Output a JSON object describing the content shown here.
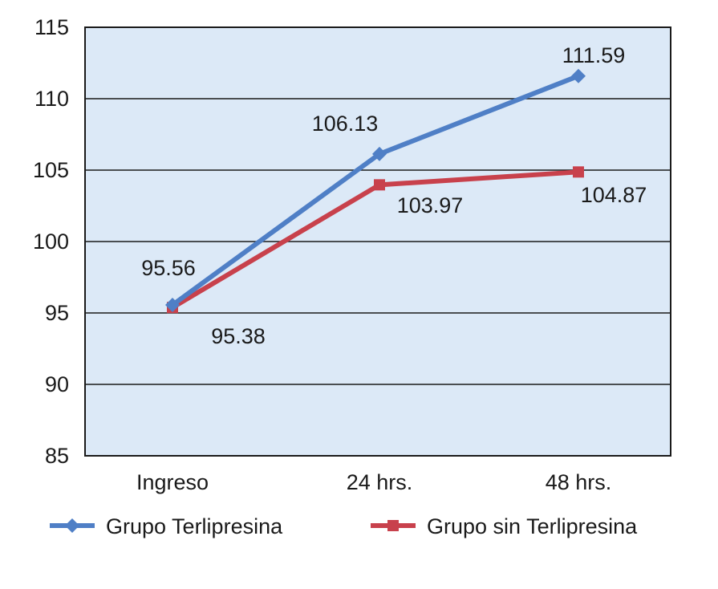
{
  "chart_data": {
    "type": "line",
    "title": "",
    "xlabel": "",
    "ylabel": "",
    "categories": [
      "Ingreso",
      "24 hrs.",
      "48 hrs."
    ],
    "ylim": [
      85,
      115
    ],
    "yticks": [
      "85",
      "90",
      "95",
      "100",
      "105",
      "110",
      "115"
    ],
    "grid": true,
    "legend_position": "bottom",
    "plot_background": "#dce9f7",
    "series": [
      {
        "name": "Grupo Terlipresina",
        "color": "#4f7fc6",
        "marker": "diamond",
        "values": [
          95.56,
          106.13,
          111.59
        ],
        "labels": [
          "95.56",
          "106.13",
          "111.59"
        ]
      },
      {
        "name": "Grupo sin Terlipresina",
        "color": "#c8414c",
        "marker": "square",
        "values": [
          95.38,
          103.97,
          104.87
        ],
        "labels": [
          "95.38",
          "103.97",
          "104.87"
        ]
      }
    ]
  }
}
